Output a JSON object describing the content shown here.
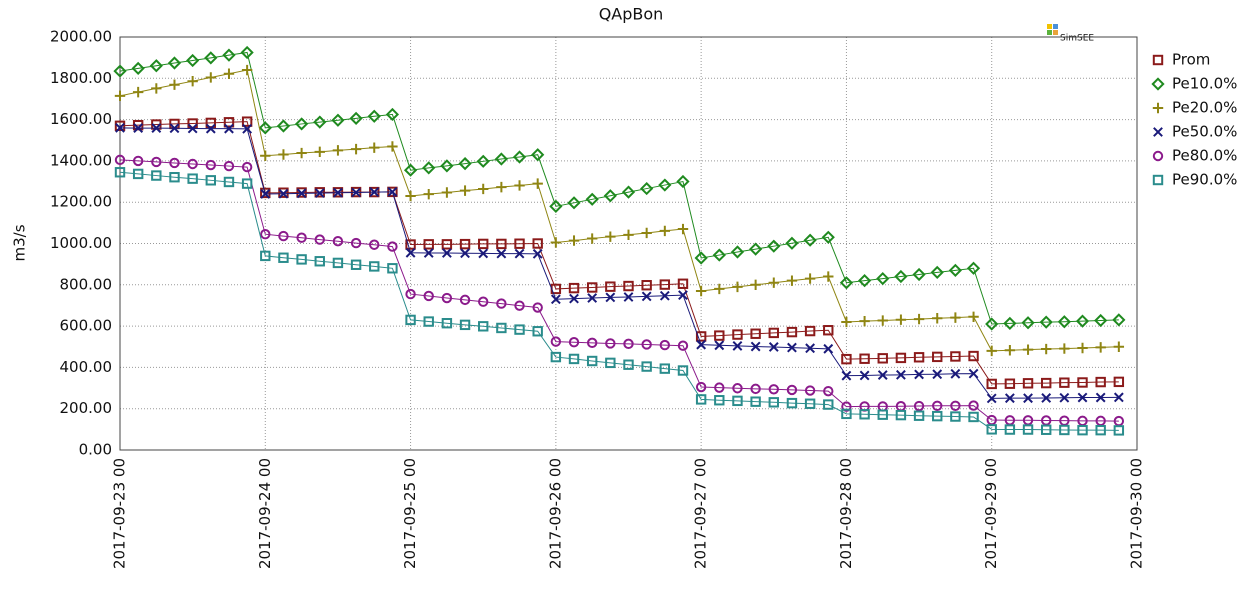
{
  "chart_data": {
    "type": "line",
    "title": "QApBon",
    "y_label": "m3/s",
    "logo_text": "SimSEE",
    "grid": true,
    "legend_position": "right",
    "xlim": [
      "2017-09-23 00",
      "2017-09-30 00"
    ],
    "xticks": [
      "2017-09-23 00",
      "2017-09-24 00",
      "2017-09-25 00",
      "2017-09-26 00",
      "2017-09-27 00",
      "2017-09-28 00",
      "2017-09-29 00",
      "2017-09-30 00"
    ],
    "ylim": [
      0,
      2000
    ],
    "yticks": [
      {
        "value": 0,
        "label": "0.00"
      },
      {
        "value": 200,
        "label": "200.00"
      },
      {
        "value": 400,
        "label": "400.00"
      },
      {
        "value": 600,
        "label": "600.00"
      },
      {
        "value": 800,
        "label": "800.00"
      },
      {
        "value": 1000,
        "label": "1000.00"
      },
      {
        "value": 1200,
        "label": "1200.00"
      },
      {
        "value": 1400,
        "label": "1400.00"
      },
      {
        "value": 1600,
        "label": "1600.00"
      },
      {
        "value": 1800,
        "label": "1800.00"
      },
      {
        "value": 2000,
        "label": "2000.00"
      }
    ],
    "x": [
      "2017-09-23 00",
      "2017-09-23 03",
      "2017-09-23 06",
      "2017-09-23 09",
      "2017-09-23 12",
      "2017-09-23 15",
      "2017-09-23 18",
      "2017-09-23 21",
      "2017-09-24 00",
      "2017-09-24 03",
      "2017-09-24 06",
      "2017-09-24 09",
      "2017-09-24 12",
      "2017-09-24 15",
      "2017-09-24 18",
      "2017-09-24 21",
      "2017-09-25 00",
      "2017-09-25 03",
      "2017-09-25 06",
      "2017-09-25 09",
      "2017-09-25 12",
      "2017-09-25 15",
      "2017-09-25 18",
      "2017-09-25 21",
      "2017-09-26 00",
      "2017-09-26 03",
      "2017-09-26 06",
      "2017-09-26 09",
      "2017-09-26 12",
      "2017-09-26 15",
      "2017-09-26 18",
      "2017-09-26 21",
      "2017-09-27 00",
      "2017-09-27 03",
      "2017-09-27 06",
      "2017-09-27 09",
      "2017-09-27 12",
      "2017-09-27 15",
      "2017-09-27 18",
      "2017-09-27 21",
      "2017-09-28 00",
      "2017-09-28 03",
      "2017-09-28 06",
      "2017-09-28 09",
      "2017-09-28 12",
      "2017-09-28 15",
      "2017-09-28 18",
      "2017-09-28 21",
      "2017-09-29 00",
      "2017-09-29 03",
      "2017-09-29 06",
      "2017-09-29 09",
      "2017-09-29 12",
      "2017-09-29 15",
      "2017-09-29 18",
      "2017-09-29 21"
    ],
    "series": [
      {
        "name": "Prom",
        "color": "#8b1a1a",
        "marker": "square",
        "values": [
          1570,
          1573,
          1576,
          1579,
          1581,
          1584,
          1587,
          1590,
          1245,
          1246,
          1247,
          1248,
          1248,
          1249,
          1249,
          1250,
          995,
          996,
          996,
          997,
          998,
          998,
          999,
          1000,
          780,
          784,
          787,
          791,
          794,
          798,
          801,
          805,
          550,
          554,
          559,
          563,
          567,
          571,
          576,
          580,
          440,
          442,
          444,
          446,
          449,
          451,
          453,
          455,
          320,
          321,
          323,
          324,
          326,
          327,
          329,
          330
        ]
      },
      {
        "name": "Pe10.0%",
        "color": "#1f8a1f",
        "marker": "diamond",
        "values": [
          1835,
          1848,
          1861,
          1874,
          1886,
          1899,
          1912,
          1925,
          1560,
          1569,
          1579,
          1588,
          1597,
          1606,
          1616,
          1625,
          1355,
          1366,
          1376,
          1387,
          1398,
          1409,
          1419,
          1430,
          1180,
          1197,
          1214,
          1231,
          1249,
          1266,
          1283,
          1300,
          930,
          944,
          959,
          973,
          987,
          1001,
          1016,
          1030,
          810,
          820,
          830,
          840,
          850,
          860,
          870,
          880,
          610,
          613,
          616,
          619,
          621,
          624,
          627,
          630
        ]
      },
      {
        "name": "Pe20.0%",
        "color": "#8f8512",
        "marker": "plus",
        "values": [
          1715,
          1733,
          1751,
          1769,
          1786,
          1804,
          1822,
          1840,
          1425,
          1431,
          1438,
          1444,
          1451,
          1457,
          1464,
          1470,
          1230,
          1239,
          1247,
          1256,
          1264,
          1273,
          1281,
          1290,
          1005,
          1014,
          1024,
          1033,
          1042,
          1051,
          1061,
          1070,
          770,
          780,
          790,
          800,
          810,
          820,
          830,
          840,
          620,
          624,
          627,
          631,
          634,
          638,
          641,
          645,
          480,
          483,
          486,
          489,
          491,
          494,
          497,
          500
        ]
      },
      {
        "name": "Pe50.0%",
        "color": "#1a1a7a",
        "marker": "cross",
        "values": [
          1560,
          1559,
          1559,
          1558,
          1557,
          1556,
          1556,
          1555,
          1240,
          1241,
          1243,
          1244,
          1246,
          1247,
          1249,
          1250,
          955,
          954,
          954,
          953,
          952,
          951,
          951,
          950,
          730,
          733,
          736,
          739,
          741,
          744,
          747,
          750,
          510,
          507,
          504,
          501,
          499,
          496,
          493,
          490,
          360,
          361,
          363,
          364,
          366,
          367,
          369,
          370,
          250,
          251,
          251,
          252,
          253,
          254,
          254,
          255
        ]
      },
      {
        "name": "Pe80.0%",
        "color": "#8b1a8b",
        "marker": "circle",
        "values": [
          1405,
          1400,
          1395,
          1390,
          1385,
          1380,
          1375,
          1370,
          1045,
          1036,
          1028,
          1019,
          1011,
          1002,
          994,
          985,
          755,
          746,
          736,
          727,
          718,
          709,
          699,
          690,
          525,
          522,
          519,
          516,
          514,
          511,
          508,
          505,
          305,
          302,
          299,
          296,
          294,
          291,
          288,
          285,
          210,
          211,
          211,
          212,
          213,
          214,
          214,
          215,
          145,
          144,
          144,
          143,
          142,
          141,
          141,
          140
        ]
      },
      {
        "name": "Pe90.0%",
        "color": "#2a8c8c",
        "marker": "square",
        "values": [
          1345,
          1337,
          1329,
          1321,
          1314,
          1306,
          1298,
          1290,
          940,
          931,
          923,
          914,
          906,
          897,
          889,
          880,
          630,
          622,
          614,
          606,
          599,
          591,
          583,
          575,
          450,
          441,
          431,
          422,
          413,
          404,
          394,
          385,
          245,
          241,
          238,
          234,
          231,
          227,
          224,
          220,
          175,
          173,
          171,
          169,
          166,
          164,
          162,
          160,
          100,
          99,
          99,
          98,
          97,
          96,
          96,
          95
        ]
      }
    ]
  }
}
